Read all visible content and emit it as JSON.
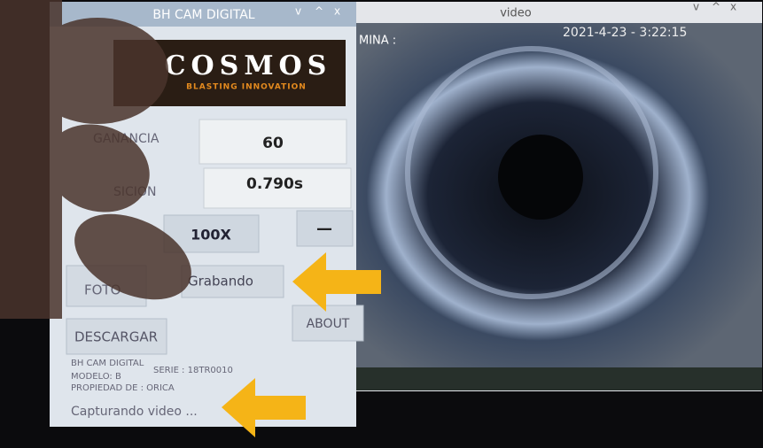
{
  "app_window": {
    "title": "BH CAM DIGITAL",
    "controls": [
      "v",
      "^",
      "x"
    ],
    "logo": {
      "name": "COSMOS",
      "tagline": "BLASTING INNOVATION"
    },
    "fields": [
      {
        "label": "GANANCIA",
        "value": "60"
      },
      {
        "label": "SICION",
        "value": "0.790s"
      }
    ],
    "zoom_button": "100X",
    "minus_button": "—",
    "buttons": {
      "photo": "FOTO",
      "record": "Grabando",
      "about": "ABOUT",
      "download": "DESCARGAR"
    },
    "info": {
      "app": "BH CAM DIGITAL",
      "model": "MODELO: B",
      "serial": "SERIE : 18TR0010",
      "owner": "PROPIEDAD DE :  ORICA"
    },
    "status": "Capturando video ..."
  },
  "video_window": {
    "title": "video",
    "controls": [
      "v",
      "^",
      "x"
    ],
    "overlay_left": "MINA :",
    "timestamp": "2021-4-23 - 3:22:15"
  }
}
